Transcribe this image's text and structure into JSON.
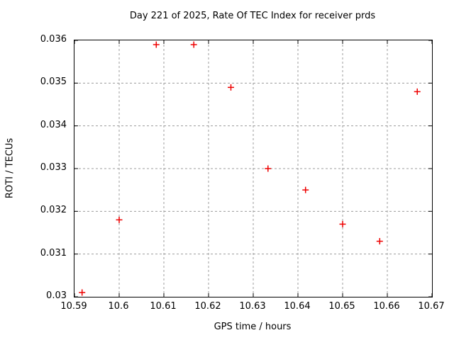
{
  "chart_data": {
    "type": "scatter",
    "title": "Day 221 of 2025, Rate Of TEC Index for receiver prds",
    "xlabel": "GPS time / hours",
    "ylabel": "ROTI / TECUs",
    "xlim": [
      10.59,
      10.67
    ],
    "ylim": [
      0.03,
      0.036
    ],
    "xticks": [
      10.59,
      10.6,
      10.61,
      10.62,
      10.63,
      10.64,
      10.65,
      10.66,
      10.67
    ],
    "xtick_labels": [
      "10.59",
      "10.6",
      "10.61",
      "10.62",
      "10.63",
      "10.64",
      "10.65",
      "10.66",
      "10.67"
    ],
    "yticks": [
      0.03,
      0.031,
      0.032,
      0.033,
      0.034,
      0.035,
      0.036
    ],
    "ytick_labels": [
      "0.03",
      "0.031",
      "0.032",
      "0.033",
      "0.034",
      "0.035",
      "0.036"
    ],
    "grid": true,
    "legend_position": "none",
    "series_name": "",
    "marker": {
      "shape": "plus",
      "size": 9,
      "color": "#ee0000"
    },
    "colors": {
      "background": "#ffffff",
      "axis": "#000000",
      "grid": "#9c9c9c",
      "text": "#000000",
      "marker": "#ee0000"
    },
    "points": [
      {
        "x": 10.5917,
        "y": 0.0301
      },
      {
        "x": 10.6,
        "y": 0.0318
      },
      {
        "x": 10.6083,
        "y": 0.0359
      },
      {
        "x": 10.6167,
        "y": 0.0359
      },
      {
        "x": 10.625,
        "y": 0.0349
      },
      {
        "x": 10.6333,
        "y": 0.033
      },
      {
        "x": 10.6417,
        "y": 0.0325
      },
      {
        "x": 10.65,
        "y": 0.0317
      },
      {
        "x": 10.6583,
        "y": 0.0313
      },
      {
        "x": 10.6667,
        "y": 0.0348
      }
    ]
  }
}
